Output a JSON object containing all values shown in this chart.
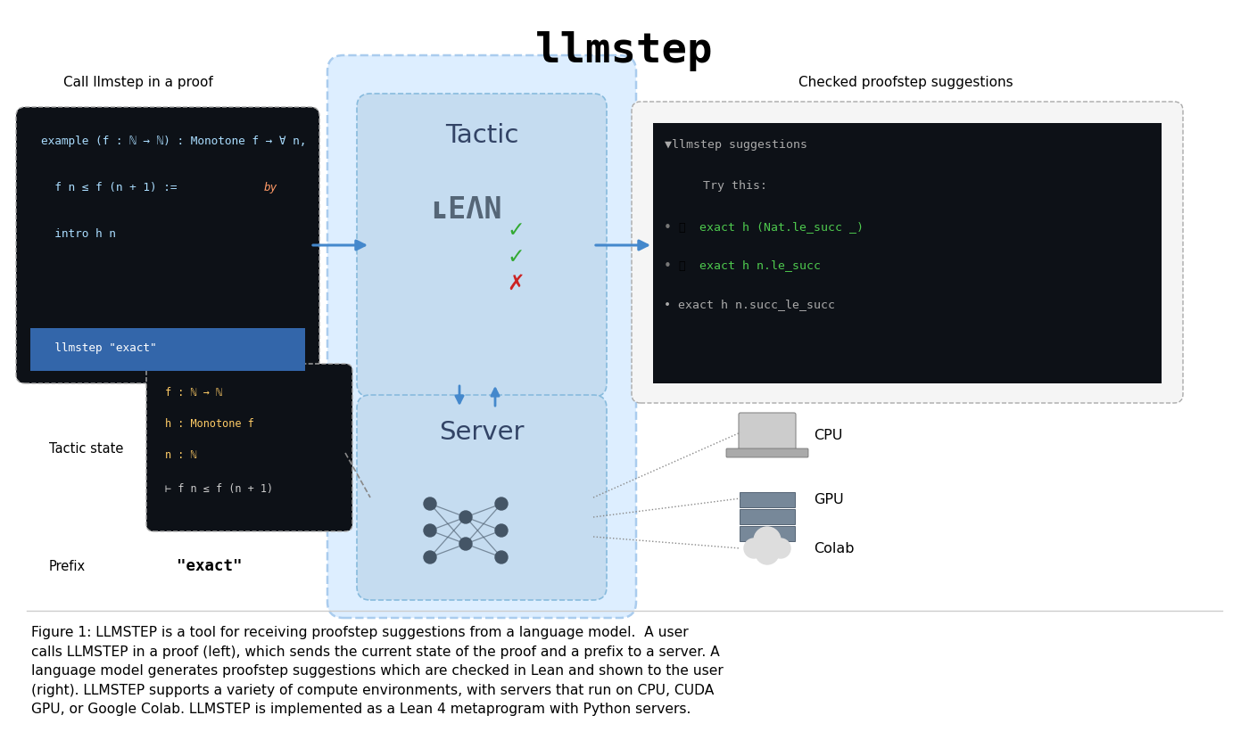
{
  "title": "llmstep",
  "bg_color": "#ffffff",
  "code_bg": "#0d1117",
  "sugg_bg": "#0d1117",
  "tactic_bg": "#0d1117",
  "main_blue_bg": "#ddeeff",
  "main_blue_border": "#aaccee",
  "inner_blue_bg": "#c5dcf0",
  "inner_blue_border": "#88bbdd",
  "arrow_blue": "#4488cc",
  "dashed_color": "#aaaaaa",
  "green_check": "#33aa33",
  "red_x": "#cc2222",
  "mono_green": "#4ec94e",
  "mono_gray": "#aaaaaa",
  "mono_white": "#cccccc",
  "lean_color": "#556677",
  "left_label": "Call llmstep in a proof",
  "right_label": "Checked proofstep suggestions",
  "tactic_state_label": "Tactic state",
  "prefix_label": "Prefix",
  "prefix_value": "\"exact\"",
  "code_line1": "example (f : ℕ → ℕ) : Monotone f → ∀ n,",
  "code_line2a": "  f n ≤ f (n + 1) := ",
  "code_line2b": "by",
  "code_line3": "  intro h n",
  "code_line4": "  llmstep \"exact\"",
  "tactic_line1": "f : ℕ → ℕ",
  "tactic_line2": "h : Monotone f",
  "tactic_line3": "n : ℕ",
  "tactic_line4": "⊢ f n ≤ f (n + 1)",
  "sugg_header": "▼llmstep suggestions",
  "sugg_try": "Try this:",
  "sugg1": "exact h (Nat.le_succ _)",
  "sugg2": "exact h n.le_succ",
  "sugg3": "exact h n.succ_le_succ",
  "cpu_label": "CPU",
  "gpu_label": "GPU",
  "colab_label": "Colab",
  "caption_line1": "Figure 1: LLMSTEP is a tool for receiving proofstep suggestions from a language model.  A user",
  "caption_line2": "calls LLMSTEP in a proof (left), which sends the current state of the proof and a prefix to a server. A",
  "caption_line3": "language model generates proofstep suggestions which are checked in Lean and shown to the user",
  "caption_line4": "(right). LLMSTEP supports a variety of compute environments, with servers that run on CPU, CUDA",
  "caption_line5": "GPU, or Google Colab. LLMSTEP is implemented as a Lean 4 metaprogram with Python servers."
}
